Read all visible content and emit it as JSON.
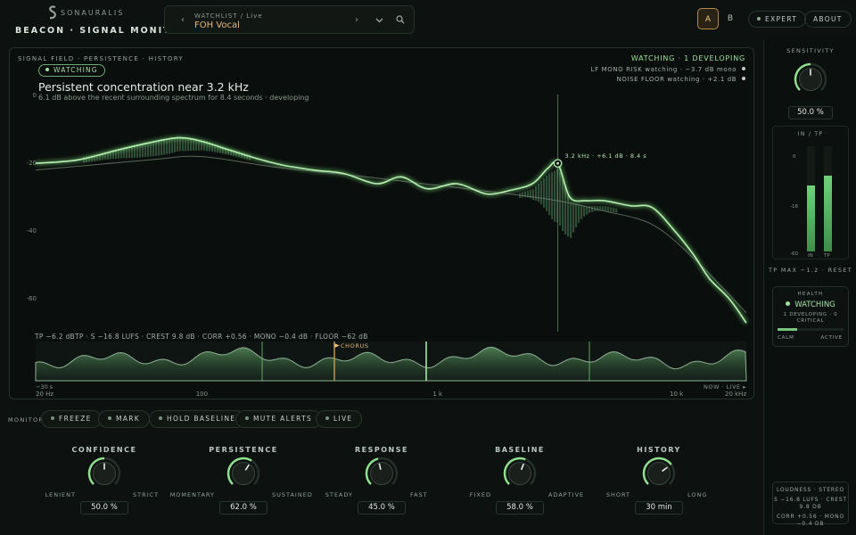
{
  "brand": {
    "name": "SONAURALIS",
    "app_title": "BEACON · SIGNAL MONITOR"
  },
  "watchlist": {
    "label": "WATCHLIST / Live",
    "value": "FOH Vocal"
  },
  "compare": {
    "a": "A",
    "b": "B",
    "active": "A"
  },
  "header_buttons": {
    "expert": "EXPERT",
    "about": "ABOUT"
  },
  "panel": {
    "breadcrumb": "SIGNAL FIELD · PERSISTENCE · HISTORY",
    "badge": "WATCHING",
    "headline": "Persistent concentration near 3.2 kHz",
    "subline": "6.1 dB above the recent surrounding spectrum for 8.4 seconds · developing",
    "status": "WATCHING · 1 DEVELOPING",
    "status_lines": [
      "LF MONO RISK watching · −3.7 dB mono",
      "NOISE FLOOR watching · +2.1 dB"
    ],
    "marker_label": "3.2 kHz · +6.1 dB · 8.4 s",
    "metrics": "TP −6.2 dBTP   ·   S −16.8 LUFS   ·   CREST 9.8 dB   ·   CORR +0.56   ·   MONO −0.4 dB   ·   FLOOR −62 dB",
    "history_marker": "CHORUS",
    "history_start": "−30 s",
    "history_end": "NOW · LIVE ▸"
  },
  "chart_data": {
    "type": "line",
    "ylabel": "",
    "yticks": [
      "0",
      "-20",
      "-40",
      "-60"
    ],
    "ylim": [
      -68,
      0
    ],
    "xlim_hz": [
      20,
      20000
    ],
    "x_scale": "log",
    "xticks": [
      {
        "hz": 20,
        "label": "20 Hz"
      },
      {
        "hz": 100,
        "label": "100"
      },
      {
        "hz": 1000,
        "label": "1 k"
      },
      {
        "hz": 10000,
        "label": "10 k"
      },
      {
        "hz": 20000,
        "label": "20 kHz"
      }
    ],
    "series": [
      {
        "name": "",
        "x": [
          20,
          30,
          45,
          60,
          80,
          100,
          130,
          170,
          220,
          300,
          400,
          550,
          700,
          900,
          1200,
          1600,
          2000,
          2500,
          2900,
          3200,
          3600,
          4200,
          5000,
          6500,
          8000,
          10000,
          12000,
          14000,
          17000,
          20000
        ],
        "y": [
          -20,
          -19,
          -16,
          -14,
          -12.5,
          -13.5,
          -16,
          -18.5,
          -20.5,
          -22,
          -23,
          -26,
          -24,
          -27.5,
          -26,
          -29,
          -28,
          -26,
          -21.5,
          -20,
          -30,
          -31,
          -31,
          -32.5,
          -33,
          -40,
          -47,
          -54,
          -60,
          -67
        ]
      },
      {
        "name": "",
        "x": [
          20,
          60,
          100,
          200,
          500,
          1000,
          2000,
          3200,
          5000,
          8000,
          12000,
          20000
        ],
        "y": [
          -22,
          -19,
          -18,
          -21,
          -24,
          -26.5,
          -29,
          -31,
          -34,
          -38,
          -48,
          -64
        ]
      }
    ],
    "peak": {
      "hz": 3200,
      "db": -20
    }
  },
  "monitor": {
    "label": "MONITOR",
    "buttons": [
      "FREEZE",
      "MARK",
      "HOLD BASELINE",
      "MUTE ALERTS",
      "LIVE"
    ]
  },
  "controls": [
    {
      "title": "CONFIDENCE",
      "left": "LENIENT",
      "right": "STRICT",
      "value": "50.0 %",
      "level": 0.5
    },
    {
      "title": "PERSISTENCE",
      "left": "MOMENTARY",
      "right": "SUSTAINED",
      "value": "62.0 %",
      "level": 0.62
    },
    {
      "title": "RESPONSE",
      "left": "STEADY",
      "right": "FAST",
      "value": "45.0 %",
      "level": 0.45
    },
    {
      "title": "BASELINE",
      "left": "FIXED",
      "right": "ADAPTIVE",
      "value": "58.0 %",
      "level": 0.58
    },
    {
      "title": "HISTORY",
      "left": "SHORT",
      "right": "LONG",
      "value": "30 min",
      "level": 0.7
    }
  ],
  "sidebar": {
    "sensitivity_title": "SENSITIVITY",
    "sensitivity_value": "50.0 %",
    "sensitivity_level": 0.5,
    "meter_title": "IN / TP",
    "meter_ticks": [
      "0",
      "-18",
      "-60"
    ],
    "meter_in_label": "IN",
    "meter_tp_label": "TP",
    "meter_in_level": 0.63,
    "meter_tp_level": 0.72,
    "tp_max": "TP MAX −1.2 · RESET",
    "health_title": "HEALTH",
    "health_state": "WATCHING",
    "health_detail": "1 DEVELOPING · 0 CRITICAL",
    "health_calm": "CALM",
    "health_active": "ACTIVE",
    "health_level": 0.3,
    "loudness_title": "LOUDNESS · STEREO",
    "loudness_line1": "S −16.8 LUFS · CREST 9.8 DB",
    "loudness_line2": "CORR +0.56 · MONO −0.4 DB"
  },
  "colors": {
    "accent": "#9ee29e",
    "amber": "#e3b87a",
    "bg": "#0d110f"
  }
}
